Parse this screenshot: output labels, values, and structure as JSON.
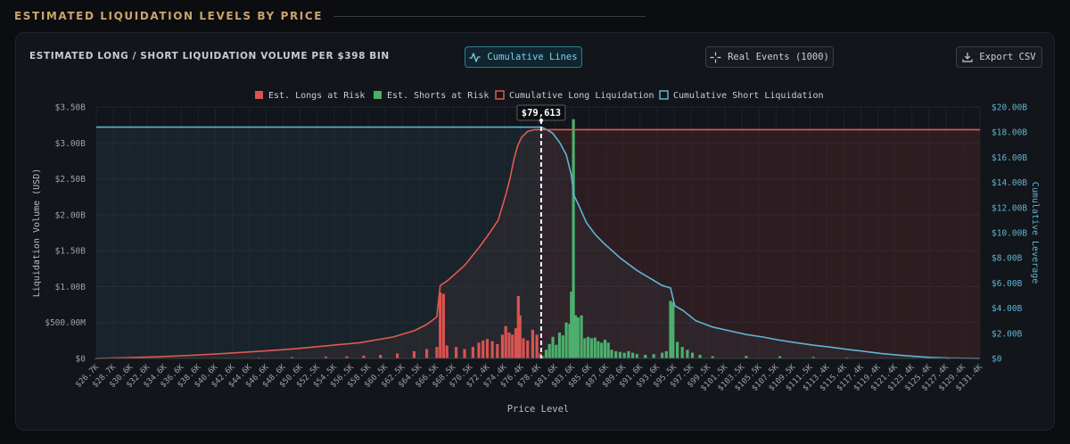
{
  "section_title": "ESTIMATED LIQUIDATION LEVELS BY PRICE",
  "panel": {
    "title": "ESTIMATED LONG / SHORT LIQUIDATION VOLUME PER $398 BIN",
    "buttons": {
      "cumulative_lines": "Cumulative Lines",
      "real_events": "Real Events (1000)",
      "export_csv": "Export CSV"
    }
  },
  "colors": {
    "longs": "#d9534f",
    "shorts": "#4caf6e",
    "cum_long": "#e05a4f",
    "cum_short": "#5fb4d6",
    "accent_title": "#c9a46a"
  },
  "chart_data": {
    "type": "bar",
    "legend": [
      {
        "key": "longs",
        "label": "Est. Longs at Risk"
      },
      {
        "key": "shorts",
        "label": "Est. Shorts at Risk"
      },
      {
        "key": "cum_long",
        "label": "Cumulative Long Liquidation"
      },
      {
        "key": "cum_short",
        "label": "Cumulative Short Liquidation"
      }
    ],
    "legend_position": "top-center",
    "xlabel": "Price Level",
    "ylabel": "Liquidation Volume (USD)",
    "ylabel_right": "Cumulative Leverage",
    "ylim": [
      0,
      3500000000
    ],
    "ylim_right": [
      0,
      20000000000
    ],
    "yticks": [
      "$0",
      "$500.00M",
      "$1.00B",
      "$1.50B",
      "$2.00B",
      "$2.50B",
      "$3.00B",
      "$3.50B"
    ],
    "yticks_right": [
      "$0",
      "$2.00B",
      "$4.00B",
      "$6.00B",
      "$8.00B",
      "$10.00B",
      "$12.00B",
      "$14.00B",
      "$16.00B",
      "$18.00B",
      "$20.00B"
    ],
    "xticks": [
      "$26.7K",
      "$28.7K",
      "$30.6K",
      "$32.6K",
      "$34.6K",
      "$36.6K",
      "$38.6K",
      "$40.6K",
      "$42.6K",
      "$44.6K",
      "$46.6K",
      "$48.6K",
      "$50.6K",
      "$52.5K",
      "$54.5K",
      "$56.5K",
      "$58.5K",
      "$60.5K",
      "$62.5K",
      "$64.5K",
      "$66.5K",
      "$68.5K",
      "$70.5K",
      "$72.4K",
      "$74.4K",
      "$76.4K",
      "$78.4K",
      "$81.6K",
      "$83.6K",
      "$85.6K",
      "$87.6K",
      "$89.6K",
      "$91.6K",
      "$93.6K",
      "$95.5K",
      "$97.5K",
      "$99.5K",
      "$101.5K",
      "$103.5K",
      "$105.5K",
      "$107.5K",
      "$109.5K",
      "$111.5K",
      "$113.4K",
      "$115.4K",
      "$117.4K",
      "$119.4K",
      "$121.4K",
      "$123.4K",
      "$125.4K",
      "$127.4K",
      "$129.4K",
      "$131.4K"
    ],
    "x_range": [
      26700,
      131800
    ],
    "bin_width": 398,
    "current_price": 79613,
    "current_price_label": "$79,613",
    "cum_long_max": 18200000000,
    "cum_short_max": 18400000000,
    "longs": [
      [
        26700,
        0.001
      ],
      [
        30000,
        0.002
      ],
      [
        34000,
        0.003
      ],
      [
        38000,
        0.005
      ],
      [
        42000,
        0.008
      ],
      [
        46000,
        0.012
      ],
      [
        50000,
        0.018
      ],
      [
        54000,
        0.026
      ],
      [
        56500,
        0.03
      ],
      [
        58500,
        0.04
      ],
      [
        60500,
        0.05
      ],
      [
        62500,
        0.07
      ],
      [
        64500,
        0.1
      ],
      [
        66000,
        0.13
      ],
      [
        67200,
        0.16
      ],
      [
        67600,
        0.92
      ],
      [
        68000,
        0.9
      ],
      [
        68400,
        0.18
      ],
      [
        69500,
        0.16
      ],
      [
        70500,
        0.13
      ],
      [
        71500,
        0.16
      ],
      [
        72200,
        0.22
      ],
      [
        72700,
        0.25
      ],
      [
        73200,
        0.27
      ],
      [
        73800,
        0.24
      ],
      [
        74400,
        0.2
      ],
      [
        75000,
        0.33
      ],
      [
        75400,
        0.45
      ],
      [
        75800,
        0.36
      ],
      [
        76200,
        0.33
      ],
      [
        76600,
        0.42
      ],
      [
        76900,
        0.87
      ],
      [
        77100,
        0.6
      ],
      [
        77500,
        0.28
      ],
      [
        78000,
        0.25
      ],
      [
        78600,
        0.4
      ],
      [
        79100,
        0.33
      ],
      [
        79500,
        0.07
      ]
    ],
    "shorts": [
      [
        79800,
        0.03
      ],
      [
        80200,
        0.12
      ],
      [
        80600,
        0.2
      ],
      [
        81000,
        0.3
      ],
      [
        81400,
        0.19
      ],
      [
        81800,
        0.36
      ],
      [
        82200,
        0.32
      ],
      [
        82600,
        0.5
      ],
      [
        83000,
        0.48
      ],
      [
        83200,
        0.93
      ],
      [
        83450,
        3.33
      ],
      [
        83700,
        0.6
      ],
      [
        84000,
        0.57
      ],
      [
        84400,
        0.6
      ],
      [
        84800,
        0.28
      ],
      [
        85200,
        0.3
      ],
      [
        85600,
        0.28
      ],
      [
        86000,
        0.29
      ],
      [
        86400,
        0.24
      ],
      [
        86800,
        0.22
      ],
      [
        87200,
        0.26
      ],
      [
        87600,
        0.22
      ],
      [
        88000,
        0.12
      ],
      [
        88500,
        0.1
      ],
      [
        89000,
        0.09
      ],
      [
        89500,
        0.08
      ],
      [
        90000,
        0.1
      ],
      [
        90500,
        0.08
      ],
      [
        91000,
        0.06
      ],
      [
        92000,
        0.05
      ],
      [
        93000,
        0.06
      ],
      [
        94000,
        0.08
      ],
      [
        94500,
        0.1
      ],
      [
        95000,
        0.8
      ],
      [
        95300,
        0.78
      ],
      [
        95800,
        0.23
      ],
      [
        96400,
        0.16
      ],
      [
        97000,
        0.12
      ],
      [
        97600,
        0.08
      ],
      [
        98500,
        0.05
      ],
      [
        100000,
        0.03
      ],
      [
        104000,
        0.035
      ],
      [
        108000,
        0.03
      ],
      [
        112000,
        0.02
      ],
      [
        116000,
        0.012
      ],
      [
        120000,
        0.007
      ],
      [
        124000,
        0.003
      ],
      [
        128000,
        0.001
      ],
      [
        131400,
        0.0005
      ]
    ],
    "cum_long": [
      [
        26700,
        0
      ],
      [
        30000,
        0.05
      ],
      [
        34000,
        0.13
      ],
      [
        38000,
        0.25
      ],
      [
        42000,
        0.4
      ],
      [
        46000,
        0.56
      ],
      [
        50000,
        0.75
      ],
      [
        54000,
        1.0
      ],
      [
        58000,
        1.25
      ],
      [
        62000,
        1.7
      ],
      [
        64500,
        2.2
      ],
      [
        66000,
        2.7
      ],
      [
        67200,
        3.3
      ],
      [
        67600,
        5.8
      ],
      [
        68500,
        6.2
      ],
      [
        70500,
        7.4
      ],
      [
        72200,
        8.8
      ],
      [
        73500,
        10.0
      ],
      [
        74500,
        11.0
      ],
      [
        75400,
        13.0
      ],
      [
        75900,
        14.3
      ],
      [
        76400,
        15.9
      ],
      [
        76800,
        16.9
      ],
      [
        77300,
        17.6
      ],
      [
        78000,
        18.05
      ],
      [
        78800,
        18.2
      ],
      [
        79613,
        18.2
      ],
      [
        131800,
        18.2
      ]
    ],
    "cum_short": [
      [
        26700,
        18.4
      ],
      [
        79613,
        18.4
      ],
      [
        80300,
        18.2
      ],
      [
        81000,
        17.9
      ],
      [
        81800,
        17.2
      ],
      [
        82600,
        16.2
      ],
      [
        83200,
        14.6
      ],
      [
        83500,
        13.0
      ],
      [
        84200,
        12.0
      ],
      [
        85000,
        10.8
      ],
      [
        86000,
        9.9
      ],
      [
        87000,
        9.2
      ],
      [
        88000,
        8.6
      ],
      [
        89000,
        8.0
      ],
      [
        90000,
        7.5
      ],
      [
        91000,
        7.0
      ],
      [
        92000,
        6.6
      ],
      [
        93000,
        6.2
      ],
      [
        94000,
        5.8
      ],
      [
        95000,
        5.6
      ],
      [
        95500,
        4.2
      ],
      [
        96500,
        3.8
      ],
      [
        98000,
        3.0
      ],
      [
        100000,
        2.5
      ],
      [
        102000,
        2.2
      ],
      [
        104000,
        1.9
      ],
      [
        106000,
        1.7
      ],
      [
        108000,
        1.45
      ],
      [
        110000,
        1.25
      ],
      [
        112000,
        1.05
      ],
      [
        114000,
        0.9
      ],
      [
        116000,
        0.72
      ],
      [
        118000,
        0.56
      ],
      [
        120000,
        0.4
      ],
      [
        122000,
        0.27
      ],
      [
        124000,
        0.16
      ],
      [
        126000,
        0.08
      ],
      [
        128000,
        0.03
      ],
      [
        131800,
        0
      ]
    ]
  }
}
